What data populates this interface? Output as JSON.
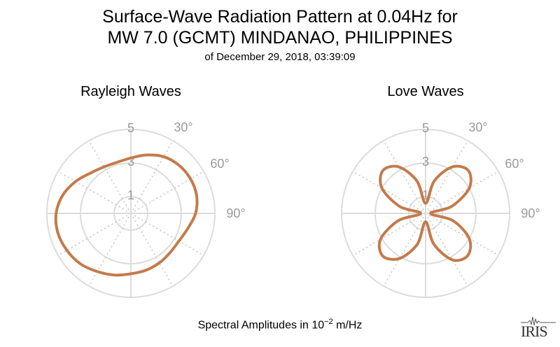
{
  "title": {
    "line1": "Surface-Wave Radiation Pattern at 0.04Hz for",
    "line2": "MW 7.0 (GCMT) MINDANAO, PHILIPPINES",
    "line3": "of December 29, 2018, 03:39:09"
  },
  "footer": {
    "prefix": "Spectral Amplitudes in ",
    "base": "10",
    "exponent": "−2",
    "unit": " m/Hz"
  },
  "logo": {
    "text": "IRIS"
  },
  "colors": {
    "curve": "#c37b4b",
    "grid": "#dcdcdc",
    "tick": "#9a9a9a"
  },
  "chart_data": [
    {
      "type": "polar",
      "title": "Rayleigh Waves",
      "radial_ticks": [
        "1",
        "3",
        "5"
      ],
      "angle_ticks": [
        "30°",
        "60°",
        "90°"
      ],
      "rmax": 5,
      "theta_deg": [
        0,
        15,
        30,
        45,
        60,
        75,
        90,
        105,
        120,
        135,
        150,
        165,
        180,
        195,
        210,
        225,
        240,
        255,
        270,
        285,
        300,
        315,
        330,
        345
      ],
      "r": [
        3.3,
        3.6,
        3.9,
        4.05,
        4.1,
        4.05,
        3.85,
        3.5,
        3.3,
        3.3,
        3.4,
        3.5,
        3.6,
        3.8,
        4.0,
        4.25,
        4.4,
        4.5,
        4.45,
        4.2,
        3.8,
        3.4,
        3.2,
        3.15
      ]
    },
    {
      "type": "polar",
      "title": "Love Waves",
      "radial_ticks": [
        "1",
        "3",
        "5"
      ],
      "angle_ticks": [
        "30°",
        "60°",
        "90°"
      ],
      "rmax": 5,
      "theta_deg": [
        0,
        15,
        30,
        45,
        60,
        75,
        90,
        105,
        120,
        135,
        150,
        165,
        180,
        195,
        210,
        225,
        240,
        255,
        270,
        285,
        300,
        315,
        330,
        345
      ],
      "r": [
        0.6,
        2.0,
        3.2,
        3.6,
        3.0,
        1.6,
        0.3,
        1.7,
        3.0,
        3.55,
        3.2,
        1.9,
        0.5,
        1.9,
        3.1,
        3.6,
        3.1,
        1.7,
        0.3,
        1.6,
        3.0,
        3.6,
        3.2,
        2.0
      ]
    }
  ]
}
